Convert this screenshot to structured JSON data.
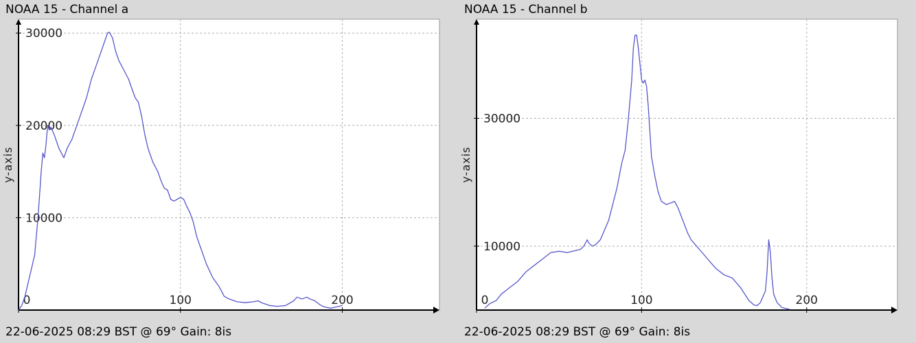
{
  "chart_data": [
    {
      "type": "line",
      "title": "NOAA 15 - Channel a",
      "footer": "22-06-2025 08:29 BST @ 69° Gain: 8is",
      "ylabel": "y-axis",
      "xlabel": "",
      "xlim": [
        0,
        260
      ],
      "ylim": [
        0,
        31500
      ],
      "x_ticks": [
        0,
        100,
        200
      ],
      "y_ticks": [
        10000,
        20000,
        30000
      ],
      "grid": true,
      "line_color": "#5555cc",
      "series": [
        {
          "x": [
            0,
            2,
            4,
            6,
            8,
            10,
            11,
            12,
            13,
            14,
            15,
            16,
            17,
            18,
            19,
            20,
            22,
            25,
            28,
            30,
            33,
            36,
            39,
            42,
            45,
            48,
            50,
            52,
            54,
            55,
            56,
            58,
            60,
            62,
            65,
            68,
            70,
            72,
            74,
            76,
            78,
            80,
            83,
            86,
            88,
            90,
            92,
            94,
            96,
            98,
            100,
            102,
            104,
            106,
            108,
            110,
            113,
            116,
            120,
            124,
            127,
            130,
            135,
            140,
            145,
            148,
            150,
            155,
            160,
            165,
            170,
            172,
            175,
            178,
            180,
            183,
            186,
            188,
            190,
            193,
            195,
            198,
            200
          ],
          "y": [
            0,
            500,
            1500,
            3000,
            4500,
            6000,
            8000,
            10000,
            12500,
            15000,
            17000,
            16500,
            18000,
            20000,
            19500,
            19800,
            19000,
            17500,
            16500,
            17500,
            18500,
            20000,
            21500,
            23000,
            25000,
            26500,
            27500,
            28500,
            29500,
            30000,
            30100,
            29500,
            28000,
            27000,
            26000,
            25000,
            24000,
            23000,
            22500,
            21000,
            19000,
            17500,
            16000,
            15000,
            14000,
            13200,
            13000,
            12000,
            11800,
            12000,
            12200,
            12000,
            11200,
            10500,
            9500,
            8000,
            6500,
            5000,
            3500,
            2500,
            1500,
            1200,
            900,
            800,
            900,
            1000,
            800,
            500,
            400,
            500,
            1000,
            1400,
            1200,
            1400,
            1200,
            1000,
            600,
            400,
            300,
            200,
            300,
            400,
            500
          ]
        }
      ]
    },
    {
      "type": "line",
      "title": "NOAA 15 - Channel b",
      "footer": "22-06-2025 08:29 BST @ 69° Gain: 8is",
      "ylabel": "y-axis",
      "xlabel": "",
      "xlim": [
        0,
        255
      ],
      "ylim": [
        0,
        45500
      ],
      "x_ticks": [
        0,
        100,
        200
      ],
      "y_ticks": [
        10000,
        30000
      ],
      "grid": true,
      "line_color": "#5555cc",
      "series": [
        {
          "x": [
            5,
            8,
            12,
            15,
            20,
            25,
            30,
            35,
            40,
            45,
            50,
            55,
            60,
            63,
            65,
            67,
            68,
            70,
            72,
            75,
            80,
            85,
            88,
            90,
            92,
            94,
            95,
            96,
            97,
            98,
            100,
            101,
            102,
            103,
            104,
            105,
            106,
            108,
            110,
            112,
            115,
            120,
            122,
            125,
            128,
            130,
            135,
            140,
            145,
            150,
            155,
            160,
            165,
            168,
            170,
            172,
            175,
            176,
            177,
            178,
            179,
            180,
            182,
            185,
            190
          ],
          "y": [
            300,
            1000,
            1500,
            2500,
            3500,
            4500,
            6000,
            7000,
            8000,
            9000,
            9200,
            9000,
            9300,
            9500,
            10000,
            11000,
            10500,
            10000,
            10200,
            11000,
            14000,
            19000,
            23000,
            25000,
            30000,
            36000,
            41000,
            43000,
            43000,
            41000,
            36000,
            35500,
            36000,
            35000,
            32000,
            28000,
            24000,
            21000,
            18500,
            17000,
            16500,
            17000,
            16000,
            14000,
            12000,
            11000,
            9500,
            8000,
            6500,
            5500,
            5000,
            3500,
            1500,
            800,
            700,
            1200,
            3000,
            6000,
            11000,
            9000,
            5000,
            2500,
            1200,
            400,
            100
          ]
        }
      ]
    }
  ]
}
